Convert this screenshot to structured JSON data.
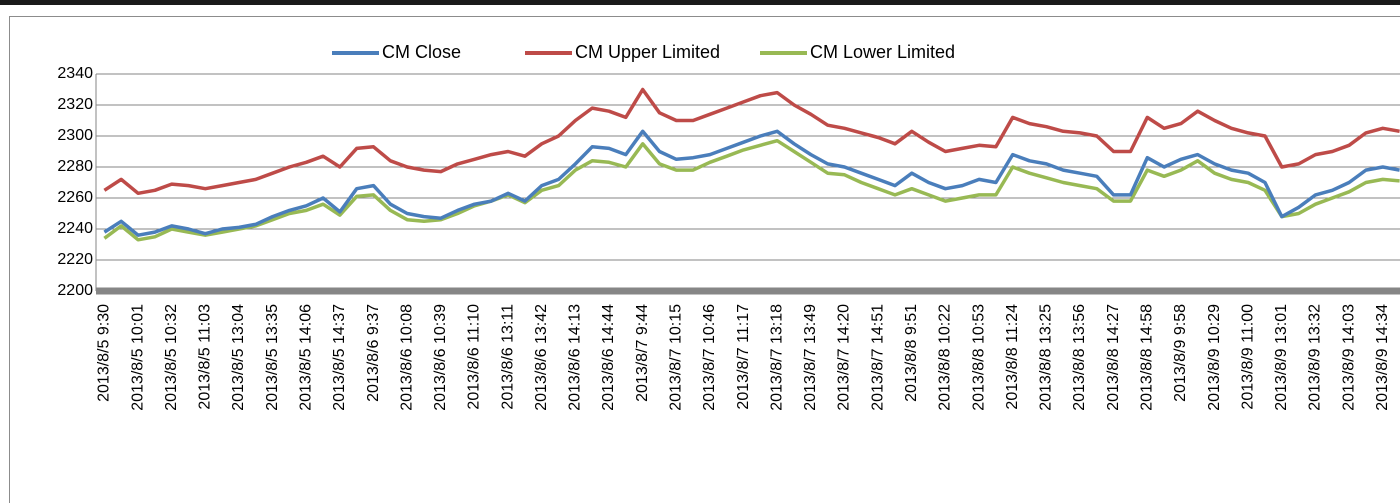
{
  "chart_data": {
    "type": "line",
    "categories": [
      "2013/8/5 9:30",
      null,
      "2013/8/5 10:01",
      null,
      "2013/8/5 10:32",
      null,
      "2013/8/5 11:03",
      null,
      "2013/8/5 13:04",
      null,
      "2013/8/5 13:35",
      null,
      "2013/8/5 14:06",
      null,
      "2013/8/5 14:37",
      null,
      "2013/8/6 9:37",
      null,
      "2013/8/6 10:08",
      null,
      "2013/8/6 10:39",
      null,
      "2013/8/6 11:10",
      null,
      "2013/8/6 13:11",
      null,
      "2013/8/6 13:42",
      null,
      "2013/8/6 14:13",
      null,
      "2013/8/6 14:44",
      null,
      "2013/8/7 9:44",
      null,
      "2013/8/7 10:15",
      null,
      "2013/8/7 10:46",
      null,
      "2013/8/7 11:17",
      null,
      "2013/8/7 13:18",
      null,
      "2013/8/7 13:49",
      null,
      "2013/8/7 14:20",
      null,
      "2013/8/7 14:51",
      null,
      "2013/8/8 9:51",
      null,
      "2013/8/8 10:22",
      null,
      "2013/8/8 10:53",
      null,
      "2013/8/8 11:24",
      null,
      "2013/8/8 13:25",
      null,
      "2013/8/8 13:56",
      null,
      "2013/8/8 14:27",
      null,
      "2013/8/8 14:58",
      null,
      "2013/8/9 9:58",
      null,
      "2013/8/9 10:29",
      null,
      "2013/8/9 11:00",
      null,
      "2013/8/9 13:01",
      null,
      "2013/8/9 13:32",
      null,
      "2013/8/9 14:03",
      null,
      "2013/8/9 14:34",
      null
    ],
    "series": [
      {
        "name": "CM Close",
        "color": "#4a7ebb",
        "values": [
          2238,
          2245,
          2236,
          2238,
          2242,
          2240,
          2237,
          2240,
          2241,
          2243,
          2248,
          2252,
          2255,
          2260,
          2251,
          2266,
          2268,
          2256,
          2250,
          2248,
          2247,
          2252,
          2256,
          2258,
          2263,
          2258,
          2268,
          2272,
          2282,
          2293,
          2292,
          2288,
          2303,
          2290,
          2285,
          2286,
          2288,
          2292,
          2296,
          2300,
          2303,
          2295,
          2288,
          2282,
          2280,
          2276,
          2272,
          2268,
          2276,
          2270,
          2266,
          2268,
          2272,
          2270,
          2288,
          2284,
          2282,
          2278,
          2276,
          2274,
          2262,
          2262,
          2286,
          2280,
          2285,
          2288,
          2282,
          2278,
          2276,
          2270,
          2248,
          2254,
          2262,
          2265,
          2270,
          2278,
          2280,
          2278
        ]
      },
      {
        "name": "CM Upper Limited",
        "color": "#be4b48",
        "values": [
          2265,
          2272,
          2263,
          2265,
          2269,
          2268,
          2266,
          2268,
          2270,
          2272,
          2276,
          2280,
          2283,
          2287,
          2280,
          2292,
          2293,
          2284,
          2280,
          2278,
          2277,
          2282,
          2285,
          2288,
          2290,
          2287,
          2295,
          2300,
          2310,
          2318,
          2316,
          2312,
          2330,
          2315,
          2310,
          2310,
          2314,
          2318,
          2322,
          2326,
          2328,
          2320,
          2314,
          2307,
          2305,
          2302,
          2299,
          2295,
          2303,
          2296,
          2290,
          2292,
          2294,
          2293,
          2312,
          2308,
          2306,
          2303,
          2302,
          2300,
          2290,
          2290,
          2312,
          2305,
          2308,
          2316,
          2310,
          2305,
          2302,
          2300,
          2280,
          2282,
          2288,
          2290,
          2294,
          2302,
          2305,
          2303
        ]
      },
      {
        "name": "CM Lower Limited",
        "color": "#98b954",
        "values": [
          2234,
          2242,
          2233,
          2235,
          2240,
          2238,
          2236,
          2238,
          2240,
          2242,
          2246,
          2250,
          2252,
          2256,
          2249,
          2261,
          2262,
          2252,
          2246,
          2245,
          2246,
          2250,
          2255,
          2258,
          2262,
          2257,
          2265,
          2268,
          2278,
          2284,
          2283,
          2280,
          2295,
          2282,
          2278,
          2278,
          2283,
          2287,
          2291,
          2294,
          2297,
          2290,
          2283,
          2276,
          2275,
          2270,
          2266,
          2262,
          2266,
          2262,
          2258,
          2260,
          2262,
          2262,
          2280,
          2276,
          2273,
          2270,
          2268,
          2266,
          2258,
          2258,
          2278,
          2274,
          2278,
          2284,
          2276,
          2272,
          2270,
          2265,
          2248,
          2250,
          2256,
          2260,
          2264,
          2270,
          2272,
          2271
        ]
      }
    ],
    "ylim": [
      2200,
      2340
    ],
    "yticks": [
      2200,
      2220,
      2240,
      2260,
      2280,
      2300,
      2320,
      2340
    ],
    "grid": true,
    "legend": "top"
  }
}
